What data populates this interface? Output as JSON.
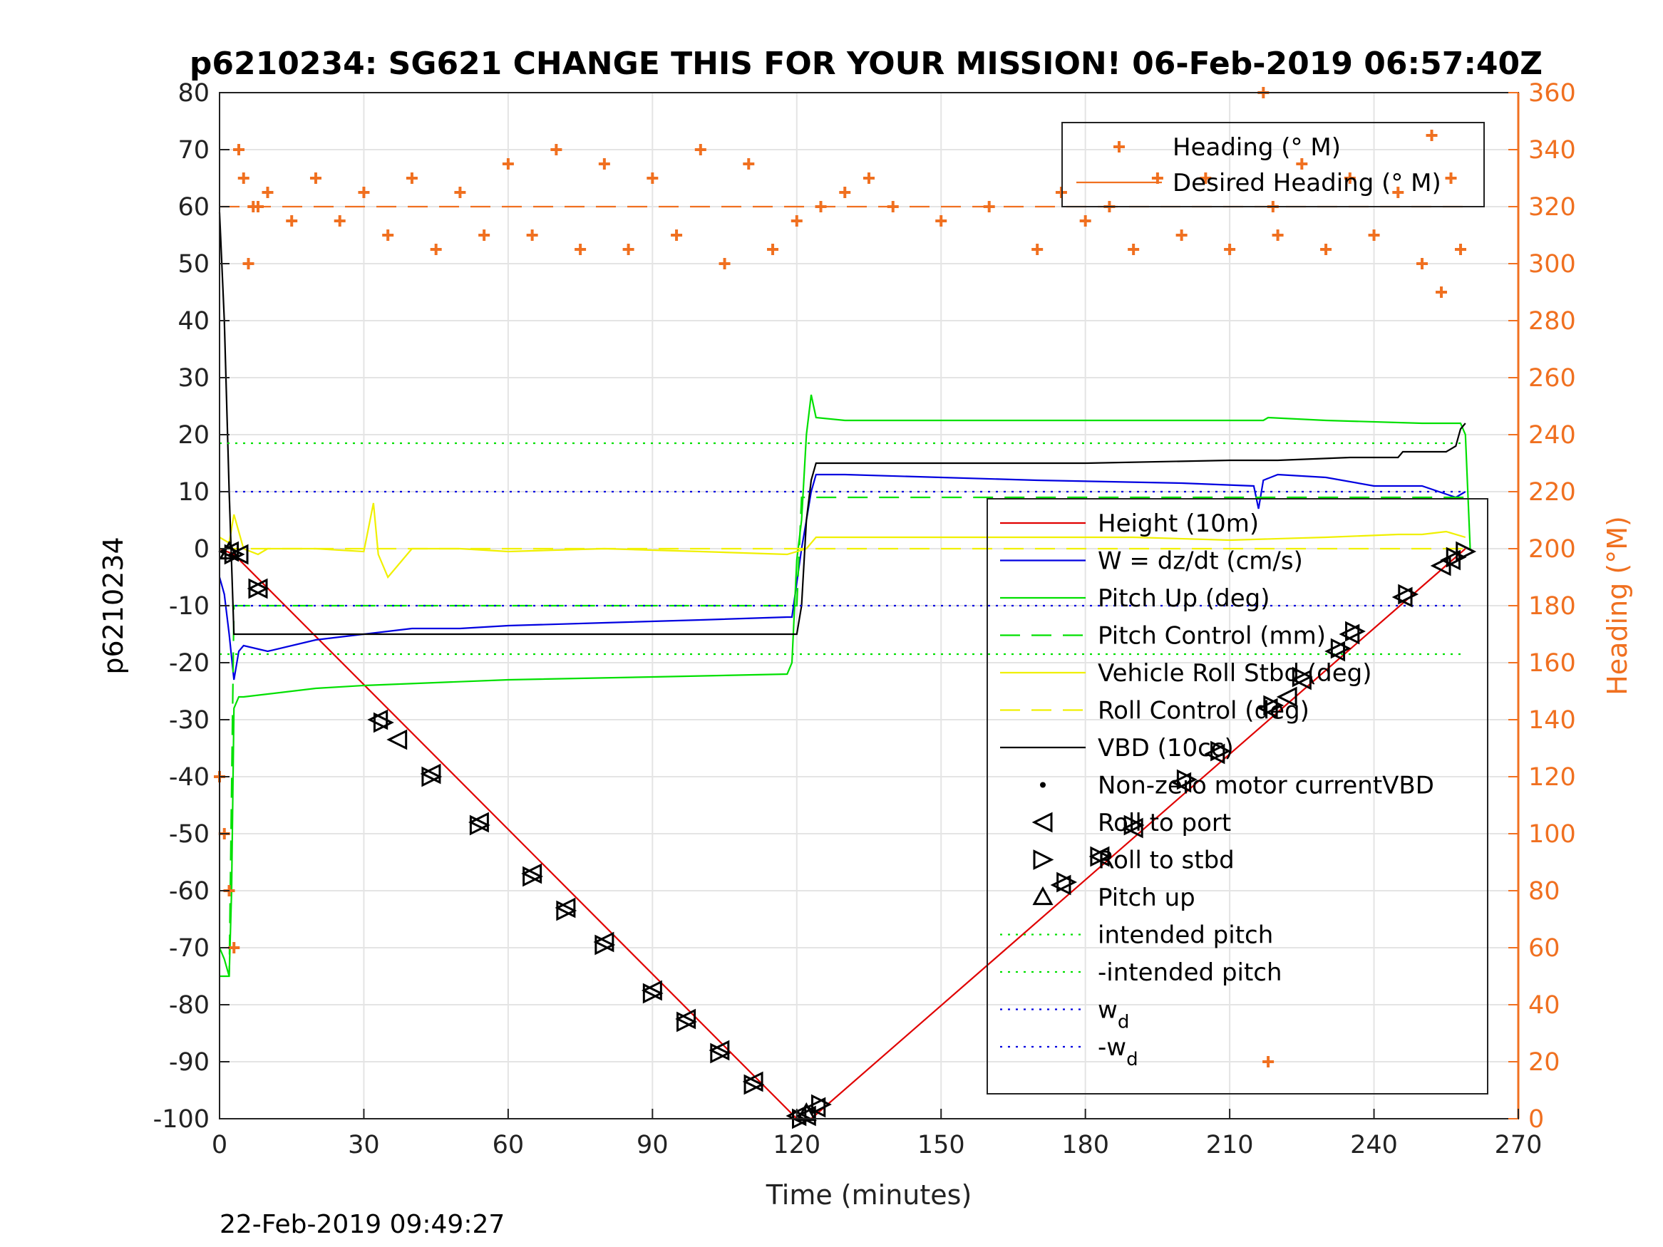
{
  "chart_data": {
    "type": "line",
    "title": "p6210234: SG621 CHANGE THIS FOR YOUR MISSION! 06-Feb-2019 06:57:40Z",
    "xlabel": "Time (minutes)",
    "ylabel": "p6210234",
    "y2label": "Heading (°M)",
    "xlim": [
      0,
      270
    ],
    "ylim": [
      -100,
      80
    ],
    "y2lim": [
      0,
      360
    ],
    "xticks": [
      0,
      30,
      60,
      90,
      120,
      150,
      180,
      210,
      240,
      270
    ],
    "yticks": [
      80,
      70,
      60,
      50,
      40,
      30,
      20,
      10,
      0,
      -10,
      -20,
      -30,
      -40,
      -50,
      -60,
      -70,
      -80,
      -90,
      -100
    ],
    "y2ticks": [
      360,
      340,
      320,
      300,
      280,
      260,
      240,
      220,
      200,
      180,
      160,
      140,
      120,
      100,
      80,
      60,
      40,
      20,
      0
    ],
    "grid": true,
    "timestamp": "22-Feb-2019 09:49:27",
    "colors": {
      "height": "#e00000",
      "w": "#0000e0",
      "pitch": "#00e000",
      "roll": "#f0f000",
      "vbd": "#000000",
      "heading": "#f07020",
      "intended": "#00e000",
      "wd": "#0000e0"
    },
    "legend_heading": {
      "location": "top-right",
      "entries": [
        {
          "label": "Heading (° M)",
          "style": "plus",
          "color": "#f07020"
        },
        {
          "label": "Desired Heading (° M)",
          "style": "line",
          "color": "#f07020"
        }
      ]
    },
    "legend_main": {
      "location": "right",
      "entries": [
        {
          "label": "Height (10m)",
          "style": "solid",
          "color": "#e00000"
        },
        {
          "label": "W = dz/dt (cm/s)",
          "style": "solid",
          "color": "#0000e0"
        },
        {
          "label": "Pitch Up (deg)",
          "style": "solid",
          "color": "#00e000"
        },
        {
          "label": "Pitch Control (mm)",
          "style": "dashed",
          "color": "#00e000"
        },
        {
          "label": "Vehicle Roll Stbd (deg)",
          "style": "solid",
          "color": "#f0f000"
        },
        {
          "label": "Roll Control (deg)",
          "style": "dashed",
          "color": "#f0f000"
        },
        {
          "label": "VBD (10cc)",
          "style": "solid",
          "color": "#000000"
        },
        {
          "label": "Non-zero motor currentVBD",
          "style": "dot",
          "color": "#000000"
        },
        {
          "label": "Roll to port",
          "style": "tri-left",
          "color": "#000000"
        },
        {
          "label": "Roll to stbd",
          "style": "tri-right",
          "color": "#000000"
        },
        {
          "label": "Pitch up",
          "style": "tri-up",
          "color": "#000000"
        },
        {
          "label": "intended pitch",
          "style": "dotted",
          "color": "#00e000"
        },
        {
          "label": "-intended pitch",
          "style": "dotted",
          "color": "#00e000"
        },
        {
          "label": "w",
          "sub": "d",
          "style": "dotted",
          "color": "#0000e0"
        },
        {
          "label": "-w",
          "sub": "d",
          "style": "dotted",
          "color": "#0000e0"
        }
      ]
    },
    "series": [
      {
        "name": "Height (10m)",
        "axis": "left",
        "style": "solid",
        "color": "#e00000",
        "x": [
          0,
          3,
          120,
          123,
          259
        ],
        "y": [
          0,
          -1,
          -100,
          -100,
          0
        ]
      },
      {
        "name": "W = dz/dt (cm/s)",
        "axis": "left",
        "style": "solid",
        "color": "#0000e0",
        "x": [
          0,
          1,
          2,
          3,
          4,
          5,
          10,
          20,
          30,
          40,
          50,
          60,
          80,
          100,
          118,
          119,
          121,
          122,
          123,
          124,
          130,
          150,
          170,
          200,
          215,
          216,
          217,
          220,
          230,
          240,
          250,
          257,
          259
        ],
        "y": [
          -5,
          -8,
          -15,
          -23,
          -18,
          -17,
          -18,
          -16,
          -15,
          -14,
          -14,
          -13.5,
          -13,
          -12.5,
          -12,
          -12,
          0,
          5,
          10,
          13,
          13,
          12.5,
          12,
          11.5,
          11,
          7,
          12,
          13,
          12.5,
          11,
          11,
          9,
          10
        ]
      },
      {
        "name": "Pitch Up (deg)",
        "axis": "left",
        "style": "solid",
        "color": "#00e000",
        "x": [
          0,
          1,
          2,
          2.5,
          3,
          4,
          5,
          10,
          20,
          30,
          60,
          90,
          118,
          119,
          120,
          121,
          122,
          123,
          124,
          130,
          150,
          180,
          200,
          217,
          218,
          230,
          250,
          258,
          259,
          260
        ],
        "y": [
          -70,
          -72,
          -75,
          -60,
          -28,
          -26,
          -26,
          -25.5,
          -24.5,
          -24,
          -23,
          -22.5,
          -22,
          -20,
          -2,
          5,
          20,
          27,
          23,
          22.5,
          22.5,
          22.5,
          22.5,
          22.5,
          23,
          22.5,
          22,
          22,
          20,
          0
        ]
      },
      {
        "name": "Pitch Control (mm)",
        "axis": "left",
        "style": "dashed",
        "color": "#00e000",
        "x": [
          0,
          2,
          3,
          119,
          120,
          121,
          260
        ],
        "y": [
          -75,
          -75,
          -10,
          -10,
          -10,
          9,
          9
        ]
      },
      {
        "name": "Vehicle Roll Stbd (deg)",
        "axis": "left",
        "style": "solid",
        "color": "#f0f000",
        "x": [
          0,
          2,
          3,
          5,
          8,
          10,
          20,
          30,
          32,
          33,
          35,
          40,
          50,
          60,
          80,
          100,
          118,
          122,
          124,
          130,
          150,
          170,
          190,
          210,
          230,
          245,
          250,
          255,
          259
        ],
        "y": [
          2,
          1,
          6,
          0,
          -1,
          0,
          0,
          -0.5,
          8,
          -1,
          -5,
          0,
          0,
          -0.5,
          0,
          -0.5,
          -1,
          0,
          2,
          2,
          2,
          2,
          2,
          1.5,
          2,
          2.5,
          2.5,
          3,
          2
        ]
      },
      {
        "name": "Roll Control (deg)",
        "axis": "left",
        "style": "dashed",
        "color": "#f0f000",
        "x": [
          0,
          5,
          120,
          121,
          259
        ],
        "y": [
          0,
          0,
          0,
          0,
          0
        ]
      },
      {
        "name": "VBD (10cc)",
        "axis": "left",
        "style": "solid",
        "color": "#000000",
        "x": [
          0,
          1,
          2,
          3,
          120,
          121,
          122,
          123,
          124,
          140,
          180,
          210,
          220,
          235,
          245,
          246,
          255,
          257,
          258,
          259
        ],
        "y": [
          59,
          40,
          10,
          -15,
          -15,
          -10,
          5,
          12,
          15,
          15,
          15,
          15.5,
          15.5,
          16,
          16,
          17,
          17,
          18,
          21,
          22
        ]
      },
      {
        "name": "Heading (° M)",
        "axis": "right",
        "style": "plus",
        "color": "#f07020",
        "x": [
          0,
          1,
          2,
          3,
          4,
          5,
          6,
          7,
          8,
          10,
          15,
          20,
          25,
          30,
          35,
          40,
          45,
          50,
          55,
          60,
          65,
          70,
          75,
          80,
          85,
          90,
          95,
          100,
          105,
          110,
          115,
          120,
          125,
          130,
          135,
          140,
          150,
          160,
          170,
          175,
          180,
          185,
          190,
          195,
          200,
          205,
          210,
          217,
          218,
          219,
          220,
          225,
          230,
          235,
          240,
          245,
          250,
          252,
          254,
          256,
          258
        ],
        "y": [
          120,
          100,
          80,
          60,
          340,
          330,
          300,
          320,
          320,
          325,
          315,
          330,
          315,
          325,
          310,
          330,
          305,
          325,
          310,
          335,
          310,
          340,
          305,
          335,
          305,
          330,
          310,
          340,
          300,
          335,
          305,
          315,
          320,
          325,
          330,
          320,
          315,
          320,
          305,
          325,
          315,
          320,
          305,
          330,
          310,
          330,
          305,
          360,
          20,
          320,
          310,
          335,
          305,
          330,
          310,
          325,
          300,
          345,
          290,
          330,
          305
        ]
      },
      {
        "name": "Desired Heading (° M)",
        "axis": "right",
        "style": "dashed",
        "color": "#f07020",
        "x": [
          0,
          259
        ],
        "y": [
          320,
          320
        ]
      },
      {
        "name": "intended pitch",
        "axis": "left",
        "style": "dotted",
        "color": "#00e000",
        "x": [
          0,
          259
        ],
        "y": [
          18.5,
          18.5
        ]
      },
      {
        "name": "-intended pitch",
        "axis": "left",
        "style": "dotted",
        "color": "#00e000",
        "x": [
          0,
          259
        ],
        "y": [
          -18.5,
          -18.5
        ]
      },
      {
        "name": "wd",
        "axis": "left",
        "style": "dotted",
        "color": "#0000e0",
        "x": [
          0,
          259
        ],
        "y": [
          10,
          10
        ]
      },
      {
        "name": "-wd",
        "axis": "left",
        "style": "dotted",
        "color": "#0000e0",
        "x": [
          0,
          259
        ],
        "y": [
          -10,
          -10
        ]
      }
    ],
    "markers": [
      {
        "name": "Roll to port",
        "shape": "tri-left",
        "x": [
          2,
          4,
          8,
          33,
          37,
          44,
          54,
          65,
          72,
          80,
          90,
          97,
          104,
          111,
          120,
          122,
          124,
          175,
          183,
          190,
          200,
          207,
          218,
          222,
          225,
          232,
          235,
          246,
          254,
          256
        ],
        "y": [
          -0.5,
          -1,
          -7,
          -30,
          -33.5,
          -39.5,
          -48,
          -57,
          -63,
          -69,
          -77.5,
          -82.5,
          -88,
          -93.5,
          -99.5,
          -99.5,
          -98,
          -59,
          -54,
          -49,
          -41,
          -36,
          -28,
          -26,
          -23,
          -18,
          -15,
          -8.5,
          -3,
          -2
        ]
      },
      {
        "name": "Roll to stbd",
        "shape": "tri-right",
        "x": [
          3,
          8,
          34,
          44,
          54,
          65,
          72,
          80,
          90,
          97,
          104,
          111,
          121,
          125,
          176,
          183,
          190,
          201,
          208,
          219,
          225,
          233,
          236,
          247,
          257,
          259
        ],
        "y": [
          -1,
          -7,
          -30.5,
          -40,
          -48.5,
          -57.5,
          -63.5,
          -69.5,
          -78,
          -83,
          -88.5,
          -94,
          -100,
          -97.5,
          -58.5,
          -54,
          -48.5,
          -40.5,
          -35.5,
          -27.5,
          -22.5,
          -17.5,
          -14.5,
          -8,
          -1.5,
          -0.5
        ]
      },
      {
        "name": "Pitch up",
        "shape": "tri-up",
        "x": [
          2,
          122
        ],
        "y": [
          -0.5,
          -99
        ]
      }
    ]
  }
}
